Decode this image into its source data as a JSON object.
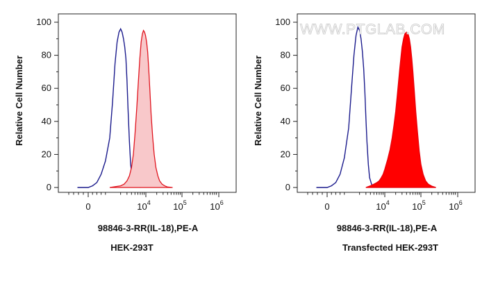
{
  "chart_data": [
    {
      "type": "area",
      "ylabel": "Relative Cell Number",
      "xlabel": "98846-3-RR(IL-18),PE-A",
      "caption": "HEK-293T",
      "x_scale": "biexponential",
      "ylim": [
        0,
        100
      ],
      "yticks": [
        "0",
        "20",
        "40",
        "60",
        "80",
        "100"
      ],
      "xticks": [
        {
          "base": "0",
          "exp": ""
        },
        {
          "base": "10",
          "exp": "4"
        },
        {
          "base": "10",
          "exp": "5"
        },
        {
          "base": "10",
          "exp": "6"
        }
      ],
      "series": [
        {
          "style": "outline",
          "color": "#1a1a8c",
          "points": [
            [
              -500,
              0
            ],
            [
              0,
              0
            ],
            [
              200,
              1
            ],
            [
              400,
              3
            ],
            [
              600,
              8
            ],
            [
              800,
              16
            ],
            [
              1000,
              30
            ],
            [
              1200,
              52
            ],
            [
              1400,
              75
            ],
            [
              1600,
              88
            ],
            [
              1800,
              94
            ],
            [
              2000,
              96
            ],
            [
              2200,
              94
            ],
            [
              2400,
              90
            ],
            [
              2600,
              85
            ],
            [
              2800,
              78
            ],
            [
              3000,
              65
            ],
            [
              3200,
              48
            ],
            [
              3500,
              28
            ],
            [
              3800,
              14
            ],
            [
              4200,
              6
            ],
            [
              4700,
              2
            ],
            [
              5500,
              0.5
            ],
            [
              7000,
              0
            ]
          ]
        },
        {
          "style": "filled",
          "color": "#e0141e",
          "fill": "#f8c8ca",
          "points": [
            [
              1000,
              0
            ],
            [
              2000,
              1
            ],
            [
              2500,
              2
            ],
            [
              3000,
              4
            ],
            [
              3500,
              7
            ],
            [
              4000,
              12
            ],
            [
              4500,
              20
            ],
            [
              5000,
              32
            ],
            [
              5600,
              48
            ],
            [
              6200,
              64
            ],
            [
              6800,
              78
            ],
            [
              7400,
              88
            ],
            [
              8000,
              93
            ],
            [
              8600,
              95
            ],
            [
              9200,
              94
            ],
            [
              9800,
              92
            ],
            [
              10500,
              88
            ],
            [
              11200,
              82
            ],
            [
              12000,
              72
            ],
            [
              13000,
              58
            ],
            [
              14000,
              44
            ],
            [
              15500,
              30
            ],
            [
              17000,
              20
            ],
            [
              19000,
              12
            ],
            [
              21500,
              7
            ],
            [
              24000,
              4
            ],
            [
              28000,
              2
            ],
            [
              33000,
              1
            ],
            [
              40000,
              0.3
            ],
            [
              55000,
              0
            ]
          ]
        }
      ]
    },
    {
      "type": "area",
      "ylabel": "Relative Cell Number",
      "xlabel": "98846-3-RR(IL-18),PE-A",
      "caption": "Transfected HEK-293T",
      "watermark": "WWW.PTGLAB.COM",
      "x_scale": "biexponential",
      "ylim": [
        0,
        100
      ],
      "yticks": [
        "0",
        "20",
        "40",
        "60",
        "80",
        "100"
      ],
      "xticks": [
        {
          "base": "0",
          "exp": ""
        },
        {
          "base": "10",
          "exp": "4"
        },
        {
          "base": "10",
          "exp": "5"
        },
        {
          "base": "10",
          "exp": "6"
        }
      ],
      "series": [
        {
          "style": "outline",
          "color": "#1a1a8c",
          "points": [
            [
              -500,
              0
            ],
            [
              0,
              0
            ],
            [
              200,
              1
            ],
            [
              400,
              3
            ],
            [
              600,
              8
            ],
            [
              800,
              18
            ],
            [
              1000,
              36
            ],
            [
              1200,
              60
            ],
            [
              1400,
              80
            ],
            [
              1600,
              92
            ],
            [
              1800,
              97
            ],
            [
              2000,
              95
            ],
            [
              2200,
              90
            ],
            [
              2400,
              82
            ],
            [
              2600,
              72
            ],
            [
              2800,
              58
            ],
            [
              3000,
              42
            ],
            [
              3200,
              28
            ],
            [
              3500,
              14
            ],
            [
              3800,
              6
            ],
            [
              4300,
              2
            ],
            [
              5000,
              0.5
            ],
            [
              6000,
              0
            ]
          ]
        },
        {
          "style": "filled",
          "color": "#e8000a",
          "fill": "#ff0000",
          "points": [
            [
              3000,
              0
            ],
            [
              4000,
              1
            ],
            [
              5000,
              2
            ],
            [
              6000,
              3
            ],
            [
              7000,
              4
            ],
            [
              8000,
              6
            ],
            [
              9000,
              8
            ],
            [
              10000,
              11
            ],
            [
              12000,
              17
            ],
            [
              14000,
              23
            ],
            [
              16000,
              30
            ],
            [
              18000,
              38
            ],
            [
              20000,
              46
            ],
            [
              22000,
              55
            ],
            [
              24000,
              64
            ],
            [
              26000,
              72
            ],
            [
              28000,
              79
            ],
            [
              30000,
              85
            ],
            [
              33000,
              90
            ],
            [
              36000,
              93
            ],
            [
              40000,
              94
            ],
            [
              44000,
              93
            ],
            [
              48000,
              90
            ],
            [
              52000,
              85
            ],
            [
              56000,
              78
            ],
            [
              60000,
              70
            ],
            [
              66000,
              58
            ],
            [
              72000,
              46
            ],
            [
              80000,
              34
            ],
            [
              90000,
              22
            ],
            [
              100000,
              14
            ],
            [
              115000,
              8
            ],
            [
              135000,
              4
            ],
            [
              160000,
              2
            ],
            [
              200000,
              0.8
            ],
            [
              260000,
              0
            ]
          ]
        }
      ]
    }
  ]
}
